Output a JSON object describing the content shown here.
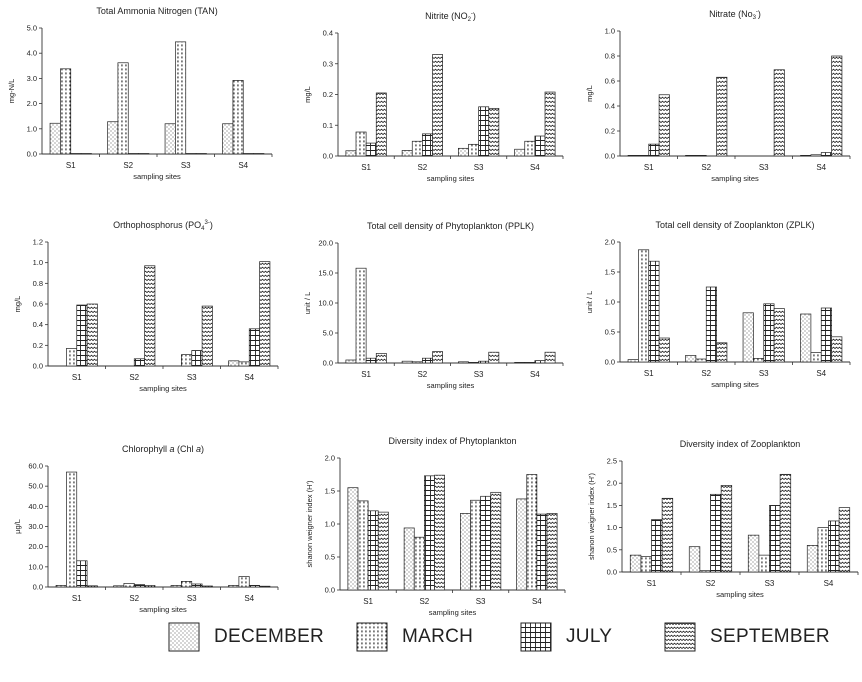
{
  "legend": {
    "items": [
      {
        "key": "dec",
        "label": "DECEMBER"
      },
      {
        "key": "mar",
        "label": "MARCH"
      },
      {
        "key": "jul",
        "label": "JULY"
      },
      {
        "key": "sep",
        "label": "SEPTEMBER"
      }
    ]
  },
  "chart_data": [
    {
      "type": "bar",
      "title": "Total Ammonia Nitrogen (TAN)",
      "xlabel": "sampling sites",
      "ylabel": "mg-N/L",
      "categories": [
        "S1",
        "S2",
        "S3",
        "S4"
      ],
      "ylim": [
        0,
        5
      ],
      "yticks": [
        "0.0",
        "1.0",
        "2.0",
        "3.0",
        "4.0",
        "5.0"
      ],
      "legend": "bottom",
      "series": [
        {
          "key": "dec",
          "values": [
            1.22,
            1.28,
            1.2,
            1.2
          ]
        },
        {
          "key": "mar",
          "values": [
            3.38,
            3.62,
            4.45,
            2.92
          ]
        },
        {
          "key": "jul",
          "values": [
            0.02,
            0.02,
            0.02,
            0.02
          ]
        },
        {
          "key": "sep",
          "values": [
            0.02,
            0.02,
            0.02,
            0.02
          ]
        }
      ]
    },
    {
      "type": "bar",
      "title": "Nitrite (NO",
      "title_sub": "2",
      "title_sup": "-",
      "title_end": ")",
      "xlabel": "sampling sites",
      "ylabel": "mg/L",
      "categories": [
        "S1",
        "S2",
        "S3",
        "S4"
      ],
      "ylim": [
        0,
        0.4
      ],
      "yticks": [
        "0.0",
        "0.1",
        "0.2",
        "0.3",
        "0.4"
      ],
      "legend": "bottom",
      "series": [
        {
          "key": "dec",
          "values": [
            0.017,
            0.018,
            0.025,
            0.022
          ]
        },
        {
          "key": "mar",
          "values": [
            0.078,
            0.048,
            0.038,
            0.048
          ]
        },
        {
          "key": "jul",
          "values": [
            0.042,
            0.072,
            0.16,
            0.065
          ]
        },
        {
          "key": "sep",
          "values": [
            0.205,
            0.33,
            0.155,
            0.208
          ]
        }
      ]
    },
    {
      "type": "bar",
      "title": "Nitrate (No",
      "title_sub": "3",
      "title_sup": "-",
      "title_end": ")",
      "xlabel": "sampling sites",
      "ylabel": "mg/L",
      "categories": [
        "S1",
        "S2",
        "S3",
        "S4"
      ],
      "ylim": [
        0,
        1
      ],
      "yticks": [
        "0.0",
        "0.2",
        "0.4",
        "0.6",
        "0.8",
        "1.0"
      ],
      "legend": "bottom",
      "series": [
        {
          "key": "dec",
          "values": [
            0.005,
            0.005,
            0.0,
            0.005
          ]
        },
        {
          "key": "mar",
          "values": [
            0.005,
            0.005,
            0.0,
            0.01
          ]
        },
        {
          "key": "jul",
          "values": [
            0.095,
            0.0,
            0.0,
            0.028
          ]
        },
        {
          "key": "sep",
          "values": [
            0.49,
            0.63,
            0.69,
            0.8
          ]
        }
      ]
    },
    {
      "type": "bar",
      "title": "Orthophosphorus (PO",
      "title_sub": "4",
      "title_sup": "3-",
      "title_end": ")",
      "xlabel": "sampling sites",
      "ylabel": "mg/L",
      "categories": [
        "S1",
        "S2",
        "S3",
        "S4"
      ],
      "ylim": [
        0,
        1.2
      ],
      "yticks": [
        "0.0",
        "0.2",
        "0.4",
        "0.6",
        "0.8",
        "1.0",
        "1.2"
      ],
      "legend": "bottom",
      "series": [
        {
          "key": "dec",
          "values": [
            0.0,
            0.0,
            0.0,
            0.05
          ]
        },
        {
          "key": "mar",
          "values": [
            0.17,
            0.0,
            0.11,
            0.04
          ]
        },
        {
          "key": "jul",
          "values": [
            0.59,
            0.07,
            0.15,
            0.36
          ]
        },
        {
          "key": "sep",
          "values": [
            0.6,
            0.97,
            0.58,
            1.01
          ]
        }
      ]
    },
    {
      "type": "bar",
      "title": "Total cell density of Phytoplankton (PPLK)",
      "xlabel": "sampling sites",
      "ylabel": "unit / L",
      "categories": [
        "S1",
        "S2",
        "S3",
        "S4"
      ],
      "ylim": [
        0,
        20
      ],
      "yticks": [
        "0.0",
        "5.0",
        "10.0",
        "15.0",
        "20.0"
      ],
      "legend": "bottom",
      "series": [
        {
          "key": "dec",
          "values": [
            0.5,
            0.3,
            0.2,
            0.1
          ]
        },
        {
          "key": "mar",
          "values": [
            15.8,
            0.2,
            0.1,
            0.1
          ]
        },
        {
          "key": "jul",
          "values": [
            0.8,
            0.8,
            0.3,
            0.4
          ]
        },
        {
          "key": "sep",
          "values": [
            1.6,
            1.9,
            1.8,
            1.8
          ]
        }
      ]
    },
    {
      "type": "bar",
      "title": "Total cell density of Zooplankton (ZPLK)",
      "xlabel": "sampling sites",
      "ylabel": "unit / L",
      "categories": [
        "S1",
        "S2",
        "S3",
        "S4"
      ],
      "ylim": [
        0,
        2
      ],
      "yticks": [
        "0.0",
        "0.5",
        "1.0",
        "1.5",
        "2.0"
      ],
      "legend": "bottom",
      "series": [
        {
          "key": "dec",
          "values": [
            0.04,
            0.11,
            0.82,
            0.8
          ]
        },
        {
          "key": "mar",
          "values": [
            1.87,
            0.05,
            0.06,
            0.16
          ]
        },
        {
          "key": "jul",
          "values": [
            1.68,
            1.25,
            0.97,
            0.9
          ]
        },
        {
          "key": "sep",
          "values": [
            0.4,
            0.32,
            0.89,
            0.42
          ]
        }
      ]
    },
    {
      "type": "bar",
      "title": "Chlorophyll",
      "title_italic": "a",
      "title_end2": "(Chl",
      "title_italic2": "a",
      "title_end": ")",
      "xlabel": "sampling sites",
      "ylabel": "µg/L",
      "categories": [
        "S1",
        "S2",
        "S3",
        "S4"
      ],
      "ylim": [
        0,
        60
      ],
      "yticks": [
        "0.0",
        "10.0",
        "20.0",
        "30.0",
        "40.0",
        "50.0",
        "60.0"
      ],
      "legend": "bottom",
      "series": [
        {
          "key": "dec",
          "values": [
            0.8,
            0.6,
            0.8,
            0.8
          ]
        },
        {
          "key": "mar",
          "values": [
            57.0,
            1.8,
            2.8,
            5.2
          ]
        },
        {
          "key": "jul",
          "values": [
            13.0,
            1.2,
            1.5,
            0.8
          ]
        },
        {
          "key": "sep",
          "values": [
            0.6,
            0.8,
            0.5,
            0.4
          ]
        }
      ]
    },
    {
      "type": "bar",
      "title": "Diversity index of Phytoplankton",
      "xlabel": "sampling sites",
      "ylabel": "shanon weigner index (H')",
      "categories": [
        "S1",
        "S2",
        "S3",
        "S4"
      ],
      "ylim": [
        0,
        2
      ],
      "yticks": [
        "0.0",
        "0.5",
        "1.0",
        "1.5",
        "2.0"
      ],
      "legend": "bottom",
      "series": [
        {
          "key": "dec",
          "values": [
            1.55,
            0.94,
            1.16,
            1.38
          ]
        },
        {
          "key": "mar",
          "values": [
            1.35,
            0.8,
            1.36,
            1.75
          ]
        },
        {
          "key": "jul",
          "values": [
            1.2,
            1.73,
            1.42,
            1.15
          ]
        },
        {
          "key": "sep",
          "values": [
            1.18,
            1.74,
            1.48,
            1.16
          ]
        }
      ]
    },
    {
      "type": "bar",
      "title": "Diversity index of Zooplankton",
      "xlabel": "sampling sites",
      "ylabel": "shanon weigner index (H')",
      "categories": [
        "S1",
        "S2",
        "S3",
        "S4"
      ],
      "ylim": [
        0,
        2.5
      ],
      "yticks": [
        "0.0",
        "0.5",
        "1.0",
        "1.5",
        "2.0",
        "2.5"
      ],
      "legend": "bottom",
      "series": [
        {
          "key": "dec",
          "values": [
            0.38,
            0.57,
            0.83,
            0.6
          ]
        },
        {
          "key": "mar",
          "values": [
            0.35,
            0.03,
            0.38,
            1.0
          ]
        },
        {
          "key": "jul",
          "values": [
            1.18,
            1.75,
            1.5,
            1.15
          ]
        },
        {
          "key": "sep",
          "values": [
            1.66,
            1.95,
            2.2,
            1.45
          ]
        }
      ]
    }
  ]
}
